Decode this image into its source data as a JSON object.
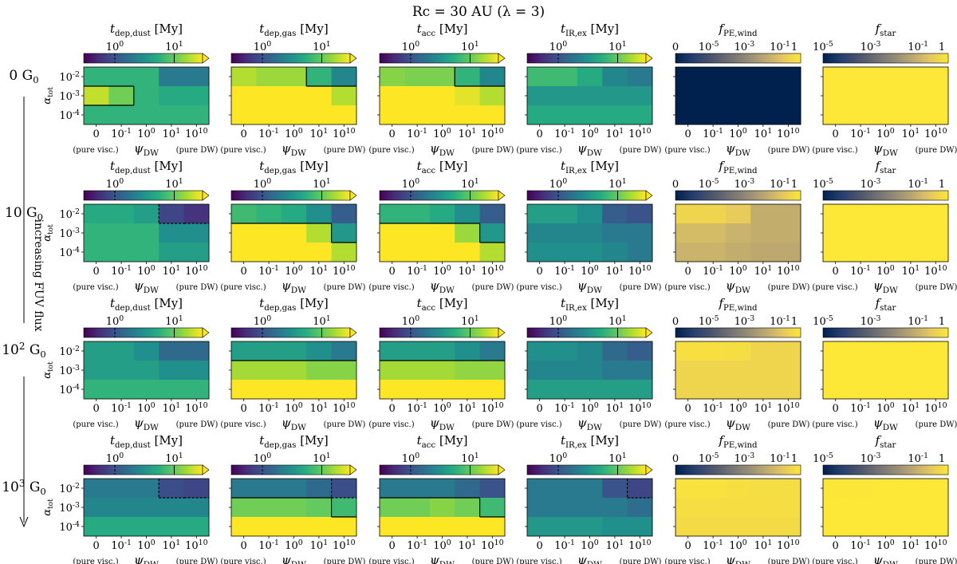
{
  "figure": {
    "title": "Rc = 30 AU (λ = 3)",
    "side_label": "increasing FUV flux"
  },
  "chart_data": {
    "type": "heatmap",
    "rows": [
      {
        "label": "0 G0",
        "flux": 0
      },
      {
        "label": "10 G0",
        "flux": 10
      },
      {
        "label": "10^2 G0",
        "flux": 100
      },
      {
        "label": "10^3 G0",
        "flux": 1000
      }
    ],
    "x_axis": {
      "label": "ψDW",
      "ticks": [
        "0",
        "10^-1",
        "10^0",
        "10^1",
        "10^10"
      ],
      "left_note": "(pure visc.)",
      "right_note": "(pure DW)"
    },
    "y_axis": {
      "label": "αtot",
      "ticks": [
        "10^-2",
        "10^-3",
        "10^-4"
      ]
    },
    "columns": [
      {
        "key": "tdep_dust",
        "title": "tdep,dust [My]",
        "cmap": "viridis",
        "scale": "log",
        "range": [
          0.3,
          30
        ],
        "ticks": [
          "10^0",
          "10^1"
        ],
        "dashed_level": 1,
        "solid_level": 10
      },
      {
        "key": "tdep_gas",
        "title": "tdep,gas [My]",
        "cmap": "viridis",
        "scale": "log",
        "range": [
          0.3,
          30
        ],
        "ticks": [
          "10^0",
          "10^1"
        ],
        "dashed_level": 1,
        "solid_level": 10
      },
      {
        "key": "tacc",
        "title": "tacc [My]",
        "cmap": "viridis",
        "scale": "log",
        "range": [
          0.3,
          30
        ],
        "ticks": [
          "10^0",
          "10^1"
        ],
        "dashed_level": 1,
        "solid_level": 10
      },
      {
        "key": "tIR_ex",
        "title": "tIR,ex [My]",
        "cmap": "viridis",
        "scale": "log",
        "range": [
          0.3,
          30
        ],
        "ticks": [
          "10^0",
          "10^1"
        ],
        "dashed_level": 1,
        "solid_level": 10
      },
      {
        "key": "fPE_wind",
        "title": "fPE,wind",
        "cmap": "cividis",
        "scale": "symlog",
        "range": [
          0,
          1
        ],
        "ticks": [
          "0",
          "10^-5",
          "10^-3",
          "10^-1",
          "1"
        ]
      },
      {
        "key": "fstar",
        "title": "fstar",
        "cmap": "cividis",
        "scale": "log",
        "range": [
          1e-05,
          1
        ],
        "ticks": [
          "10^-5",
          "10^-3",
          "10^-1",
          "1"
        ]
      }
    ],
    "values": {
      "tdep_dust": [
        [
          [
            6,
            6,
            6,
            2,
            2
          ],
          [
            20,
            11,
            6,
            5,
            5
          ],
          [
            6,
            6,
            6,
            6,
            6
          ]
        ],
        [
          [
            5,
            5,
            4,
            0.8,
            0.6
          ],
          [
            6,
            6,
            6,
            3,
            3
          ],
          [
            6,
            6,
            6,
            4,
            4
          ]
        ],
        [
          [
            4,
            4,
            3,
            1.5,
            1.5
          ],
          [
            4,
            4,
            4,
            3,
            3
          ],
          [
            6,
            6,
            6,
            6,
            6
          ]
        ],
        [
          [
            2,
            2,
            2,
            0.9,
            0.8
          ],
          [
            2.5,
            2.5,
            2.5,
            2.5,
            2.5
          ],
          [
            5,
            5,
            5,
            5,
            5
          ]
        ]
      ],
      "tdep_gas": [
        [
          [
            18,
            15,
            15,
            6,
            2.5
          ],
          [
            30,
            30,
            30,
            30,
            18
          ],
          [
            30,
            30,
            30,
            30,
            30
          ]
        ],
        [
          [
            7,
            6,
            5,
            3,
            1.2
          ],
          [
            30,
            30,
            30,
            18,
            3.5
          ],
          [
            30,
            30,
            30,
            30,
            18
          ]
        ],
        [
          [
            4,
            4,
            4,
            3,
            2
          ],
          [
            16,
            16,
            16,
            13,
            13
          ],
          [
            30,
            30,
            30,
            30,
            30
          ]
        ],
        [
          [
            2,
            2,
            2,
            1.5,
            0.9
          ],
          [
            11,
            11,
            11,
            10,
            7
          ],
          [
            30,
            30,
            30,
            30,
            30
          ]
        ]
      ],
      "tacc": [
        [
          [
            13,
            12,
            12,
            6,
            2.5
          ],
          [
            30,
            30,
            30,
            25,
            18
          ],
          [
            30,
            30,
            30,
            30,
            30
          ]
        ],
        [
          [
            6,
            6,
            5,
            3,
            1.2
          ],
          [
            30,
            30,
            30,
            15,
            3.5
          ],
          [
            30,
            30,
            30,
            30,
            18
          ]
        ],
        [
          [
            4,
            4,
            4,
            3,
            2
          ],
          [
            16,
            16,
            16,
            14,
            14
          ],
          [
            30,
            30,
            30,
            30,
            30
          ]
        ],
        [
          [
            2,
            2,
            2,
            1.5,
            1
          ],
          [
            11,
            11,
            13,
            11,
            7
          ],
          [
            30,
            30,
            30,
            30,
            30
          ]
        ]
      ],
      "tIR_ex": [
        [
          [
            7,
            7,
            5,
            2.5,
            2
          ],
          [
            3.5,
            3.5,
            3.5,
            3.5,
            3.5
          ],
          [
            5,
            5,
            5,
            5,
            5
          ]
        ],
        [
          [
            4,
            4,
            3,
            1.2,
            1
          ],
          [
            2.5,
            2.5,
            2.5,
            2,
            2
          ],
          [
            3,
            3,
            3,
            2.5,
            2
          ]
        ],
        [
          [
            3,
            3,
            2.5,
            1.5,
            1.2
          ],
          [
            2.5,
            2.5,
            2.5,
            2,
            2
          ],
          [
            4,
            4,
            4,
            4,
            4
          ]
        ],
        [
          [
            2,
            2,
            2,
            1,
            0.8
          ],
          [
            2,
            2,
            2,
            2,
            1.6
          ],
          [
            3.5,
            3.5,
            3.5,
            3,
            3
          ]
        ]
      ],
      "fPE_wind": [
        [
          [
            0,
            0,
            0,
            0,
            0
          ],
          [
            0,
            0,
            0,
            0,
            0
          ],
          [
            0,
            0,
            0,
            0,
            0
          ]
        ],
        [
          [
            0.3,
            0.3,
            0.15,
            0.02,
            0.02
          ],
          [
            0.05,
            0.05,
            0.03,
            0.02,
            0.02
          ],
          [
            0.03,
            0.03,
            0.02,
            0.015,
            0.015
          ]
        ],
        [
          [
            0.6,
            0.6,
            0.5,
            0.3,
            0.3
          ],
          [
            0.3,
            0.3,
            0.3,
            0.3,
            0.3
          ],
          [
            0.3,
            0.3,
            0.3,
            0.3,
            0.3
          ]
        ],
        [
          [
            0.7,
            0.7,
            0.6,
            0.5,
            0.5
          ],
          [
            0.55,
            0.55,
            0.55,
            0.55,
            0.5
          ],
          [
            0.45,
            0.45,
            0.45,
            0.45,
            0.45
          ]
        ]
      ],
      "fstar": [
        [
          [
            1,
            1,
            1,
            1,
            1
          ],
          [
            1,
            1,
            1,
            1,
            1
          ],
          [
            1,
            1,
            1,
            1,
            1
          ]
        ],
        [
          [
            1,
            1,
            1,
            1,
            1
          ],
          [
            1,
            1,
            1,
            1,
            1
          ],
          [
            1,
            1,
            1,
            1,
            1
          ]
        ],
        [
          [
            1,
            1,
            1,
            1,
            1
          ],
          [
            1,
            1,
            1,
            1,
            1
          ],
          [
            1,
            1,
            1,
            1,
            1
          ]
        ],
        [
          [
            0.95,
            0.95,
            1,
            1,
            1
          ],
          [
            1,
            1,
            1,
            1,
            1
          ],
          [
            1,
            1,
            1,
            1,
            1
          ]
        ]
      ]
    }
  }
}
